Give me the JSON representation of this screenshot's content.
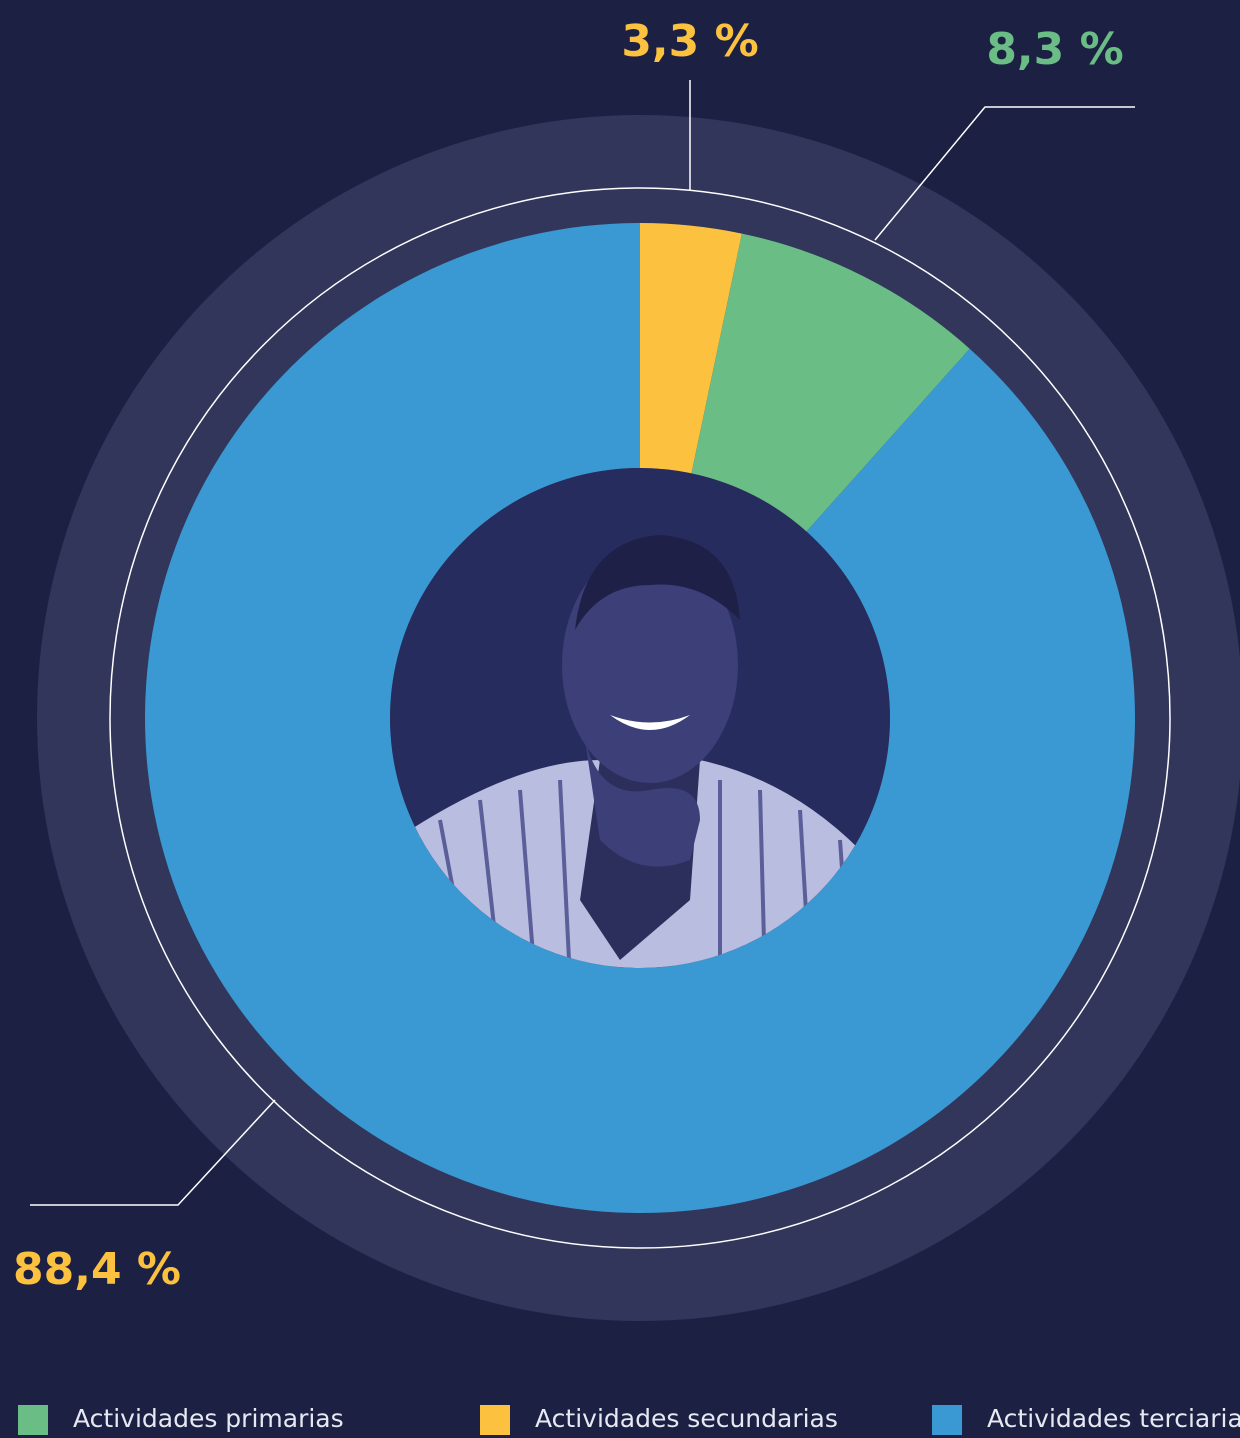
{
  "chart_data": {
    "type": "donut",
    "categories": [
      "Actividades secundarias",
      "Actividades primarias",
      "Actividades terciarias"
    ],
    "values": [
      3.3,
      8.3,
      88.4
    ],
    "value_labels": [
      "3,3 %",
      "8,3 %",
      "88,4 %"
    ],
    "colors": [
      "#fbc13f",
      "#6bbd86",
      "#3a98d2"
    ],
    "value_label_colors": [
      "#fbc13f",
      "#6bbd86",
      "#fbc13f"
    ]
  }
}
